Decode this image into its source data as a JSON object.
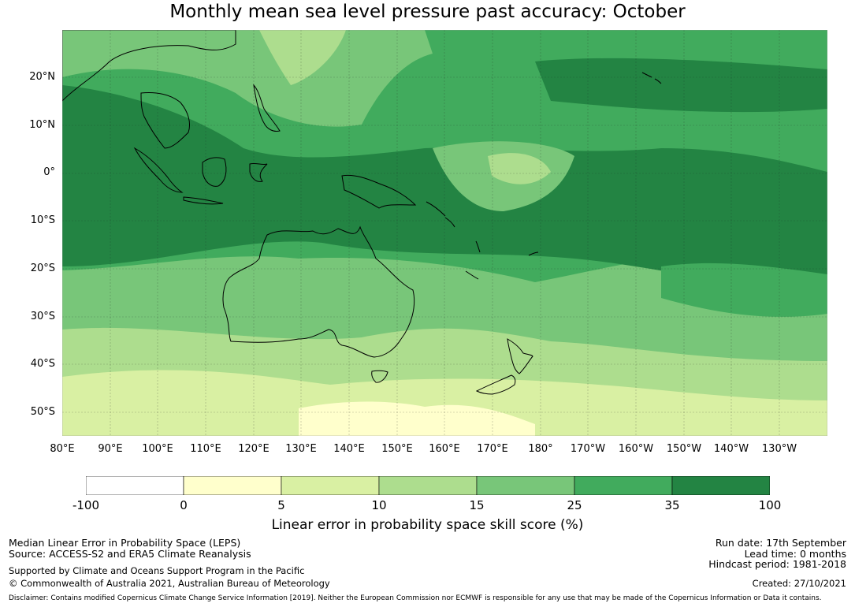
{
  "title": "Monthly mean sea level pressure past accuracy: October",
  "map": {
    "lat_labels": [
      "20°N",
      "10°N",
      "0°",
      "10°S",
      "20°S",
      "30°S",
      "40°S",
      "50°S"
    ],
    "lon_labels": [
      "80°E",
      "90°E",
      "100°E",
      "110°E",
      "120°E",
      "130°E",
      "140°E",
      "150°E",
      "160°E",
      "170°E",
      "180°",
      "170°W",
      "160°W",
      "150°W",
      "140°W",
      "130°W"
    ],
    "lon_range": [
      80,
      240
    ],
    "lat_range": [
      -55.5,
      29.5
    ]
  },
  "colorbar": {
    "ticks": [
      "-100",
      "0",
      "5",
      "10",
      "15",
      "25",
      "35",
      "100"
    ],
    "colors": [
      "#ffffff",
      "#ffffcc",
      "#d9f0a3",
      "#addd8e",
      "#78c679",
      "#41ab5d",
      "#238443"
    ],
    "label": "Linear error in probability space skill score (%)"
  },
  "footer": {
    "method": "Median Linear Error in Probability Space (LEPS)",
    "source": "Source: ACCESS-S2 and ERA5 Climate Reanalysis",
    "support": "Supported by Climate and Oceans Support Program in the Pacific",
    "copyright": "© Commonwealth of Australia 2021, Australian Bureau of Meteorology",
    "run_date": "Run date: 17th September",
    "lead_time": "Lead time: 0 months",
    "hindcast": "Hindcast period: 1981-2018",
    "created": "Created: 27/10/2021",
    "disclaimer": "Disclaimer: Contains modified Copernicus Climate Change Service Information [2019]. Neither the European Commission nor ECMWF is responsible for any use that may be made of the Copernicus Information or Data it contains."
  }
}
